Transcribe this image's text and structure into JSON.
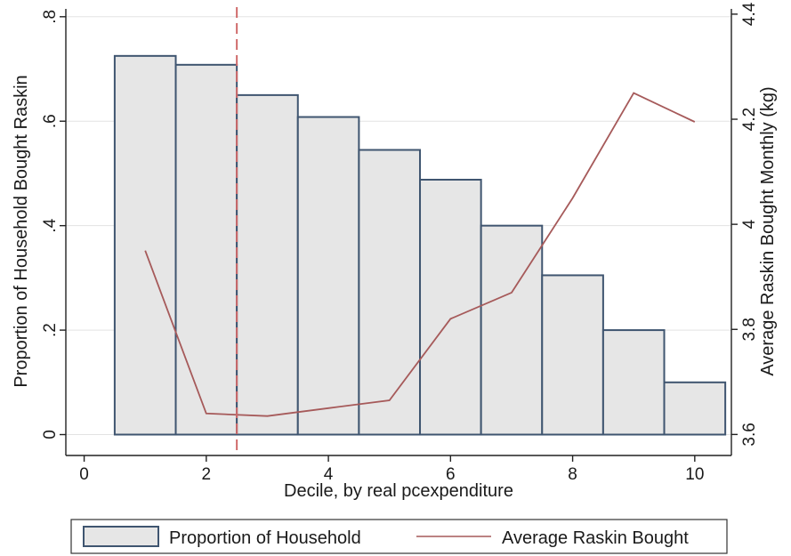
{
  "chart_data": {
    "type": "bar",
    "x": [
      1,
      2,
      3,
      4,
      5,
      6,
      7,
      8,
      9,
      10
    ],
    "series": [
      {
        "name": "Proportion of Household",
        "type": "bar",
        "axis": "left",
        "values": [
          0.725,
          0.708,
          0.65,
          0.608,
          0.545,
          0.488,
          0.4,
          0.305,
          0.2,
          0.1
        ]
      },
      {
        "name": "Average Raskin Bought",
        "type": "line",
        "axis": "right",
        "values": [
          3.95,
          3.64,
          3.635,
          3.65,
          3.665,
          3.82,
          3.87,
          4.05,
          4.25,
          4.195
        ]
      }
    ],
    "reference_line": {
      "x": 2.5,
      "style": "dashed"
    },
    "xlabel": "Decile, by real pcexpenditure",
    "ylabel": "Proportion of Household Bought Raskin",
    "ylabel_right": "Average Raskin Bought Monthly (kg)",
    "xlim": [
      -0.3,
      10.6
    ],
    "ylim": [
      -0.04,
      0.815
    ],
    "ylim_right": [
      3.56,
      4.41
    ],
    "xticks": [
      "0",
      "2",
      "4",
      "6",
      "8",
      "10"
    ],
    "xtick_values": [
      0,
      2,
      4,
      6,
      8,
      10
    ],
    "yticks": [
      "0",
      ".2",
      ".4",
      ".6",
      ".8"
    ],
    "ytick_values": [
      0,
      0.2,
      0.4,
      0.6,
      0.8
    ],
    "yticks_right": [
      "3.6",
      "3.8",
      "4",
      "4.2",
      "4.4"
    ],
    "ytick_values_right": [
      3.6,
      3.8,
      4.0,
      4.2,
      4.4
    ],
    "grid": true,
    "legend_position": "bottom",
    "colors": {
      "bar_fill": "#e6e6e6",
      "bar_stroke": "#3f5570",
      "line": "#a65a5a",
      "reference": "#d06a6a",
      "grid": "#e3e3e3",
      "axis": "#222222"
    }
  }
}
